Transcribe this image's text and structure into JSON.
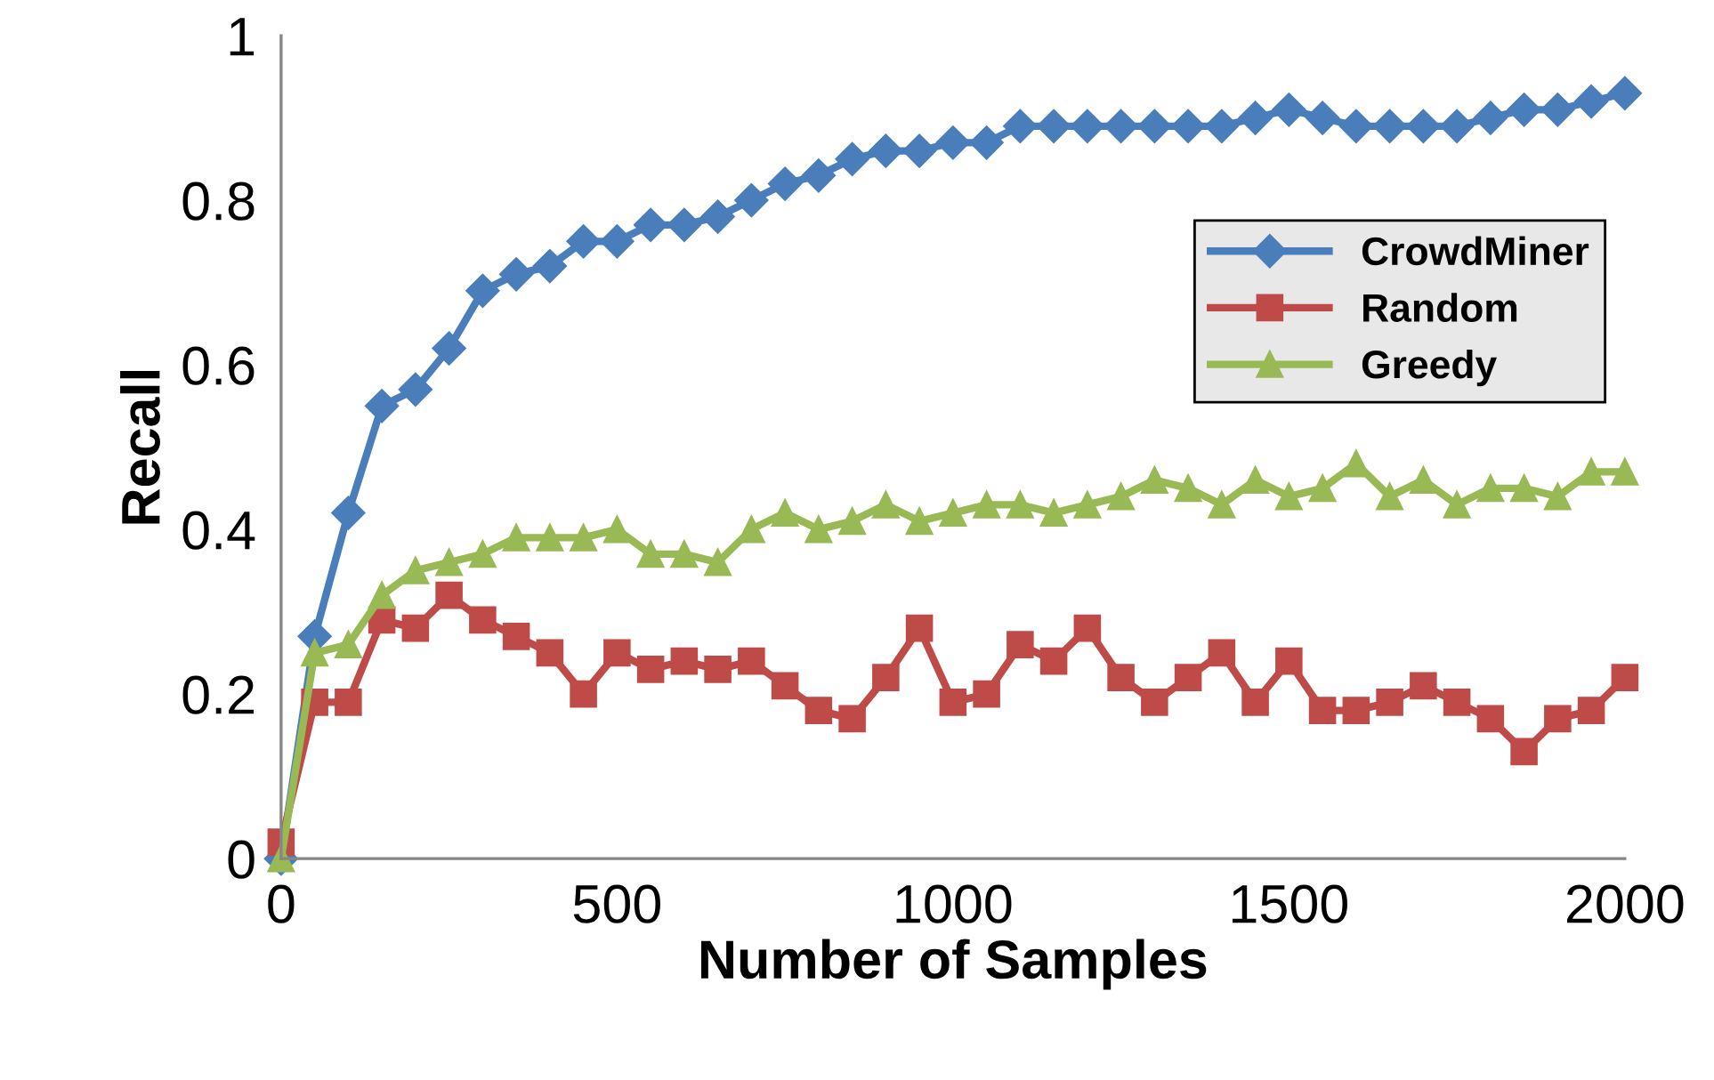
{
  "chart_data": {
    "type": "line",
    "xlabel": "Number of Samples",
    "ylabel": "Recall",
    "x": [
      0,
      50,
      100,
      150,
      200,
      250,
      300,
      350,
      400,
      450,
      500,
      550,
      600,
      650,
      700,
      750,
      800,
      850,
      900,
      950,
      1000,
      1050,
      1100,
      1150,
      1200,
      1250,
      1300,
      1350,
      1400,
      1450,
      1500,
      1550,
      1600,
      1650,
      1700,
      1750,
      1800,
      1850,
      1900,
      1950,
      2000
    ],
    "series": [
      {
        "name": "CrowdMiner",
        "color": "#4a7ebb",
        "marker": "diamond",
        "values": [
          0,
          0.27,
          0.42,
          0.55,
          0.57,
          0.62,
          0.69,
          0.71,
          0.72,
          0.75,
          0.75,
          0.77,
          0.77,
          0.78,
          0.8,
          0.82,
          0.83,
          0.85,
          0.86,
          0.86,
          0.87,
          0.87,
          0.89,
          0.89,
          0.89,
          0.89,
          0.89,
          0.89,
          0.89,
          0.9,
          0.91,
          0.9,
          0.89,
          0.89,
          0.89,
          0.89,
          0.9,
          0.91,
          0.91,
          0.92,
          0.93
        ]
      },
      {
        "name": "Random",
        "color": "#be4b48",
        "marker": "square",
        "values": [
          0.02,
          0.19,
          0.19,
          0.29,
          0.28,
          0.32,
          0.29,
          0.27,
          0.25,
          0.2,
          0.25,
          0.23,
          0.24,
          0.23,
          0.24,
          0.21,
          0.18,
          0.17,
          0.22,
          0.28,
          0.19,
          0.2,
          0.26,
          0.24,
          0.28,
          0.22,
          0.19,
          0.22,
          0.25,
          0.19,
          0.24,
          0.18,
          0.18,
          0.19,
          0.21,
          0.19,
          0.17,
          0.13,
          0.17,
          0.18,
          0.22
        ]
      },
      {
        "name": "Greedy",
        "color": "#98b954",
        "marker": "triangle",
        "values": [
          0,
          0.25,
          0.26,
          0.32,
          0.35,
          0.36,
          0.37,
          0.39,
          0.39,
          0.39,
          0.4,
          0.37,
          0.37,
          0.36,
          0.4,
          0.42,
          0.4,
          0.41,
          0.43,
          0.41,
          0.42,
          0.43,
          0.43,
          0.42,
          0.43,
          0.44,
          0.46,
          0.45,
          0.43,
          0.46,
          0.44,
          0.45,
          0.48,
          0.44,
          0.46,
          0.43,
          0.45,
          0.45,
          0.44,
          0.47,
          0.47
        ]
      }
    ],
    "xlim": [
      0,
      2000
    ],
    "xticks": [
      0,
      500,
      1000,
      1500,
      2000
    ],
    "ylim": [
      0,
      1
    ],
    "yticks": [
      0,
      0.2,
      0.4,
      0.6,
      0.8,
      1
    ],
    "grid": false,
    "legend": "right"
  }
}
